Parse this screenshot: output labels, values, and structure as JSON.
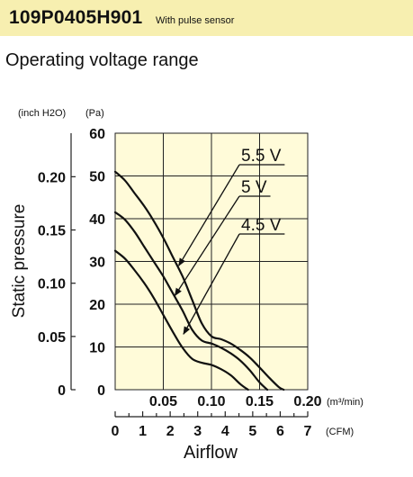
{
  "header": {
    "model": "109P0405H901",
    "subtitle": "With pulse sensor"
  },
  "section_title": "Operating voltage range",
  "chart_data": {
    "type": "line",
    "title": "",
    "xlabel": "Airflow",
    "ylabel": "Static pressure",
    "x_unit_primary": "(m³/min)",
    "x_unit_secondary": "(CFM)",
    "y_unit_primary": "(Pa)",
    "y_unit_secondary": "(inch H2O)",
    "xlim": [
      0,
      0.2
    ],
    "ylim": [
      0,
      60
    ],
    "grid": true,
    "background": "#fffbd9",
    "x_ticks": [
      {
        "value": 0.05,
        "label": "0.05"
      },
      {
        "value": 0.1,
        "label": "0.10"
      },
      {
        "value": 0.15,
        "label": "0.15"
      },
      {
        "value": 0.2,
        "label": "0.20"
      }
    ],
    "x_ticks_secondary": [
      {
        "value": 0,
        "label": "0"
      },
      {
        "value": 1,
        "label": "1"
      },
      {
        "value": 2,
        "label": "2"
      },
      {
        "value": 3,
        "label": "3"
      },
      {
        "value": 4,
        "label": "4"
      },
      {
        "value": 5,
        "label": "5"
      },
      {
        "value": 6,
        "label": "6"
      },
      {
        "value": 7,
        "label": "7"
      }
    ],
    "y_ticks": [
      {
        "value": 0,
        "label": "0"
      },
      {
        "value": 10,
        "label": "10"
      },
      {
        "value": 20,
        "label": "20"
      },
      {
        "value": 30,
        "label": "30"
      },
      {
        "value": 40,
        "label": "40"
      },
      {
        "value": 50,
        "label": "50"
      },
      {
        "value": 60,
        "label": "60"
      }
    ],
    "y_ticks_secondary": [
      {
        "value": 0,
        "label": "0"
      },
      {
        "value": 0.05,
        "label": "0.05"
      },
      {
        "value": 0.1,
        "label": "0.10"
      },
      {
        "value": 0.15,
        "label": "0.15"
      },
      {
        "value": 0.2,
        "label": "0.20"
      }
    ],
    "series": [
      {
        "name": "5.5 V",
        "x": [
          0,
          0.01,
          0.02,
          0.03,
          0.04,
          0.05,
          0.06,
          0.07,
          0.08,
          0.09,
          0.1,
          0.11,
          0.12,
          0.13,
          0.14,
          0.15,
          0.16,
          0.17,
          0.175
        ],
        "y": [
          51,
          49,
          46,
          43,
          39.5,
          35.5,
          31,
          26.5,
          21,
          15.5,
          12.5,
          11.8,
          10.8,
          9.3,
          7.5,
          5.2,
          2.8,
          0.6,
          0
        ]
      },
      {
        "name": "5 V",
        "x": [
          0,
          0.01,
          0.02,
          0.03,
          0.04,
          0.05,
          0.06,
          0.07,
          0.08,
          0.09,
          0.1,
          0.11,
          0.12,
          0.13,
          0.14,
          0.15,
          0.158
        ],
        "y": [
          41.5,
          39.8,
          37,
          33.5,
          30,
          26.5,
          22.5,
          18.5,
          14,
          11.5,
          10.8,
          9.8,
          8.5,
          6.8,
          4.5,
          1.7,
          0
        ]
      },
      {
        "name": "4.5 V",
        "x": [
          0,
          0.01,
          0.02,
          0.03,
          0.04,
          0.05,
          0.06,
          0.07,
          0.08,
          0.09,
          0.1,
          0.11,
          0.12,
          0.13,
          0.138
        ],
        "y": [
          32.5,
          30.7,
          28,
          25,
          21.5,
          17.5,
          13.5,
          9.8,
          7.2,
          6.3,
          5.8,
          4.8,
          3.4,
          1.3,
          0
        ]
      }
    ],
    "annotations": [
      {
        "text": "5.5 V",
        "target_x": 0.066,
        "target_y": 29
      },
      {
        "text": "5 V",
        "target_x": 0.062,
        "target_y": 22
      },
      {
        "text": "4.5 V",
        "target_x": 0.071,
        "target_y": 13
      }
    ]
  }
}
